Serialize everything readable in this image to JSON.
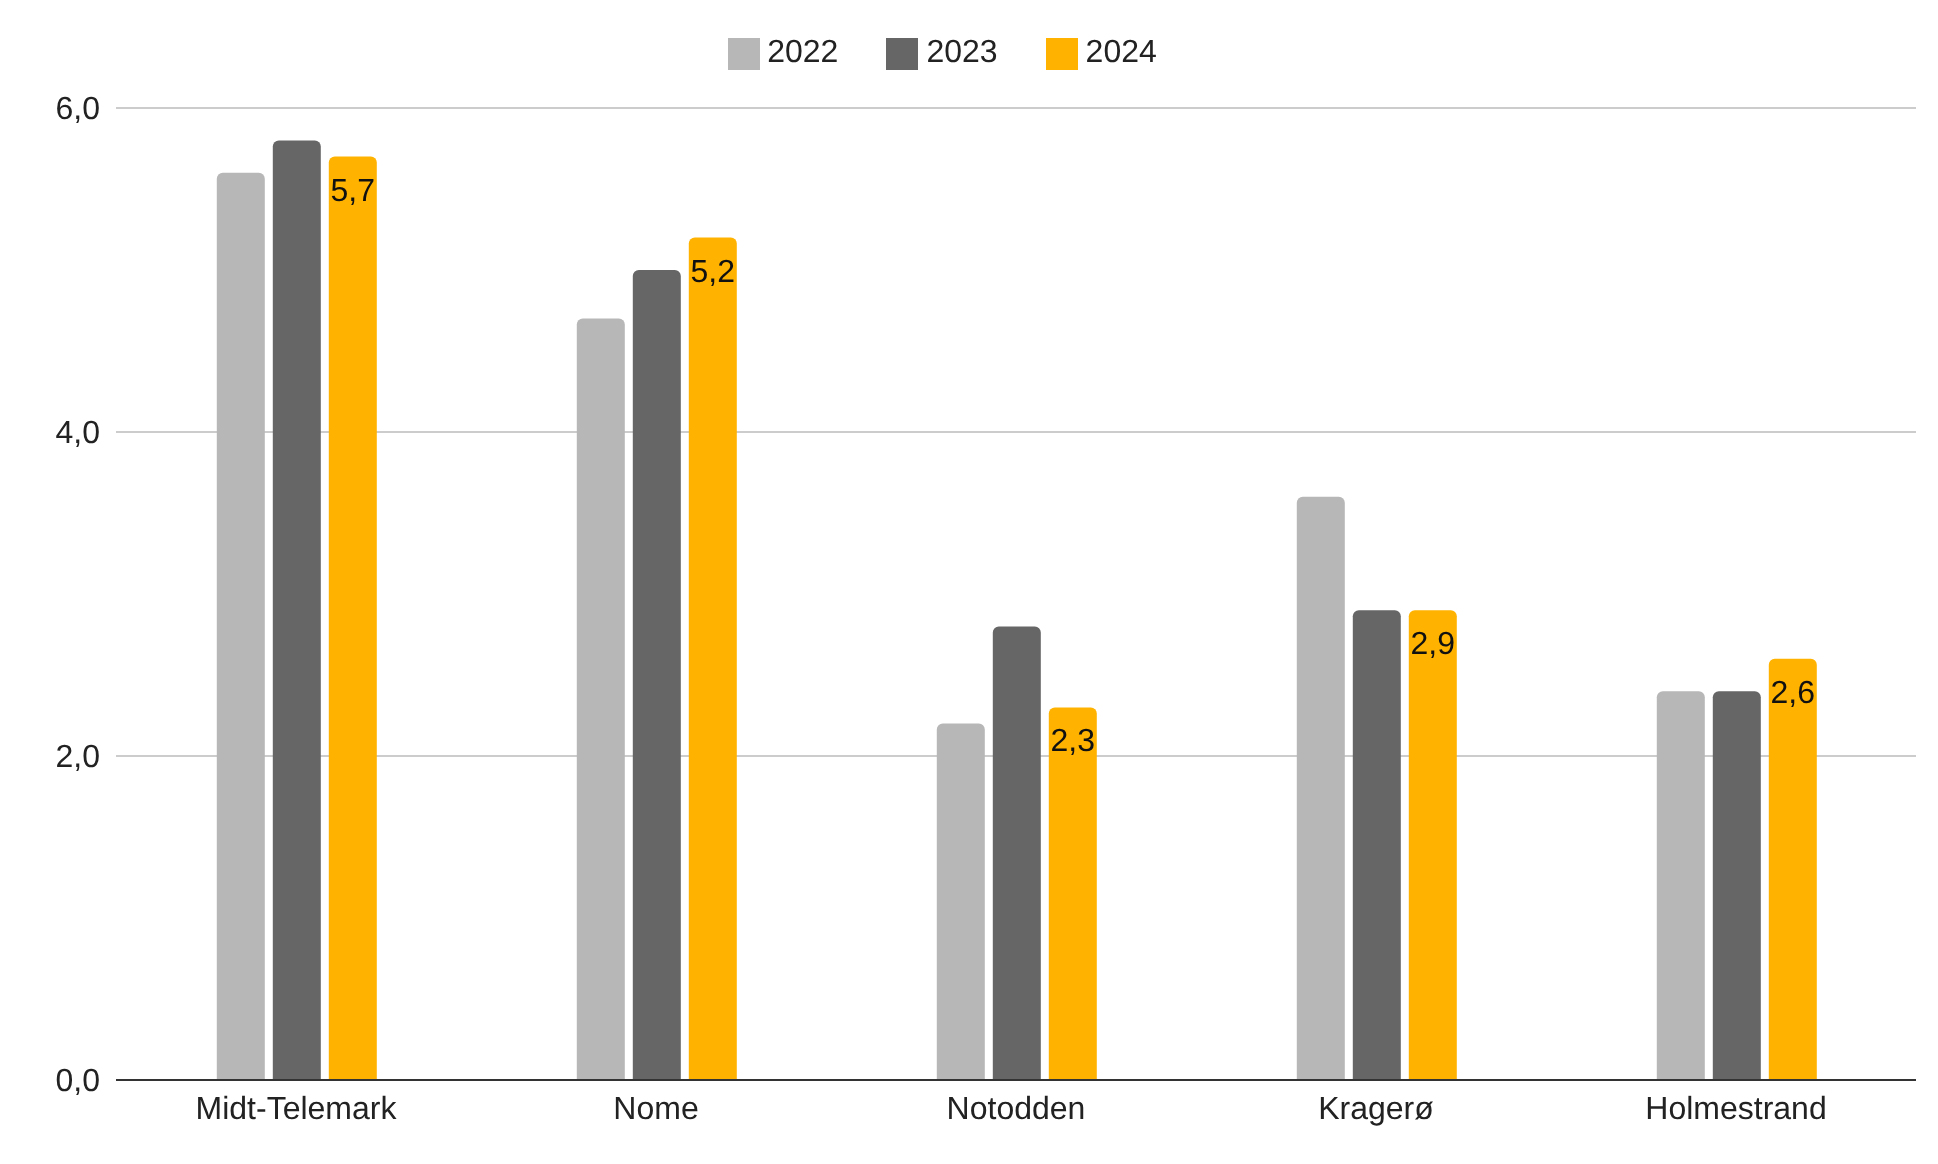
{
  "chart_data": {
    "type": "bar",
    "categories": [
      "Midt-Telemark",
      "Nome",
      "Notodden",
      "Kragerø",
      "Holmestrand"
    ],
    "series": [
      {
        "name": "2022",
        "color": "#b7b7b7",
        "values": [
          5.6,
          4.7,
          2.2,
          3.6,
          2.4
        ]
      },
      {
        "name": "2023",
        "color": "#666666",
        "values": [
          5.8,
          5.0,
          2.8,
          2.9,
          2.4
        ]
      },
      {
        "name": "2024",
        "color": "#ffb300",
        "values": [
          5.7,
          5.2,
          2.3,
          2.9,
          2.6
        ],
        "value_labels": [
          "5,7",
          "5,2",
          "2,3",
          "2,9",
          "2,6"
        ]
      }
    ],
    "ylim": [
      0,
      6
    ],
    "yticks": [
      {
        "value": 0,
        "label": "0,0"
      },
      {
        "value": 2,
        "label": "2,0"
      },
      {
        "value": 4,
        "label": "4,0"
      },
      {
        "value": 6,
        "label": "6,0"
      }
    ],
    "grid": "y",
    "legend": "top"
  }
}
